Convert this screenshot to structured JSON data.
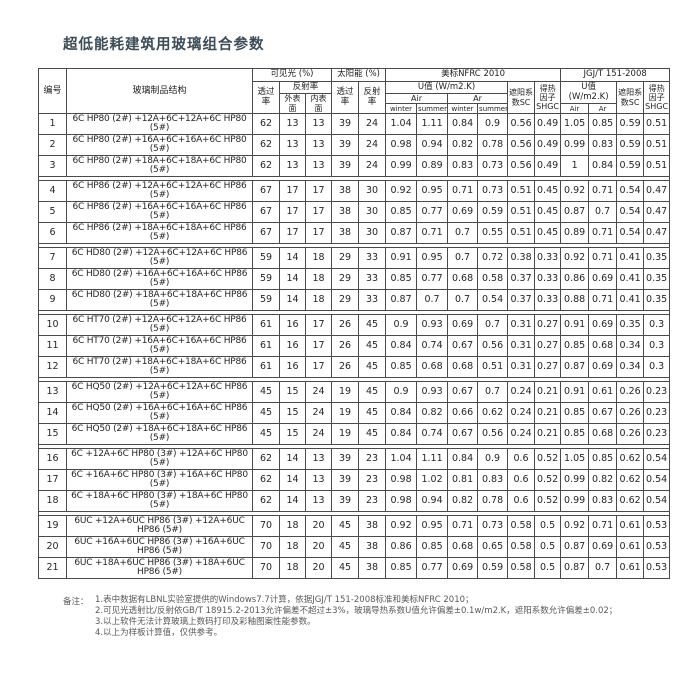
{
  "title": "超低能耗建筑用玻璃组合参数",
  "table": {
    "header": {
      "no": "编号",
      "structure": "玻璃制品结构",
      "visible": "可见光 (%)",
      "trans": "透过率",
      "refl": "反射率",
      "outer": "外表面",
      "inner": "内表面",
      "solar": "太阳能 (%)",
      "sol_trans": "透过率",
      "sol_refl": "反射率",
      "nfrc": "美标NFRC 2010",
      "uvalue": "U值 (W/m2.K)",
      "air": "Air",
      "ar": "Ar",
      "winter": "winter",
      "summer": "summer",
      "sc": "遮阳系数SC",
      "shgc": "得热因子SHGC",
      "jgj": "JGJ/T 151-2008",
      "uvalue2": "U值 (W/m2.K)",
      "air2": "Air",
      "ar2": "Ar",
      "sc2": "遮阳系数SC",
      "shgc2": "得热因子SHGC"
    },
    "rows": [
      [
        "1",
        "6C HP80 (2#) +12A+6C+12A+6C HP80 (5#)",
        "62",
        "13",
        "13",
        "39",
        "24",
        "1.04",
        "1.11",
        "0.84",
        "0.9",
        "0.56",
        "0.49",
        "1.05",
        "0.85",
        "0.59",
        "0.51"
      ],
      [
        "2",
        "6C HP80 (2#) +16A+6C+16A+6C HP80 (5#)",
        "62",
        "13",
        "13",
        "39",
        "24",
        "0.98",
        "0.94",
        "0.82",
        "0.78",
        "0.56",
        "0.49",
        "0.99",
        "0.83",
        "0.59",
        "0.51"
      ],
      [
        "3",
        "6C HP80 (2#) +18A+6C+18A+6C HP80 (5#)",
        "62",
        "13",
        "13",
        "39",
        "24",
        "0.99",
        "0.89",
        "0.83",
        "0.73",
        "0.56",
        "0.49",
        "1",
        "0.84",
        "0.59",
        "0.51"
      ],
      [
        "4",
        "6C HP86 (2#) +12A+6C+12A+6C HP86 (5#)",
        "67",
        "17",
        "17",
        "38",
        "30",
        "0.92",
        "0.95",
        "0.71",
        "0.73",
        "0.51",
        "0.45",
        "0.92",
        "0.71",
        "0.54",
        "0.47"
      ],
      [
        "5",
        "6C HP86 (2#) +16A+6C+16A+6C HP86 (5#)",
        "67",
        "17",
        "17",
        "38",
        "30",
        "0.85",
        "0.77",
        "0.69",
        "0.59",
        "0.51",
        "0.45",
        "0.87",
        "0.7",
        "0.54",
        "0.47"
      ],
      [
        "6",
        "6C HP86 (2#) +18A+6C+18A+6C HP86 (5#)",
        "67",
        "17",
        "17",
        "38",
        "30",
        "0.87",
        "0.71",
        "0.7",
        "0.55",
        "0.51",
        "0.45",
        "0.89",
        "0.71",
        "0.54",
        "0.47"
      ],
      [
        "7",
        "6C HD80 (2#) +12A+6C+12A+6C HP86 (5#)",
        "59",
        "14",
        "18",
        "29",
        "33",
        "0.91",
        "0.95",
        "0.7",
        "0.72",
        "0.38",
        "0.33",
        "0.92",
        "0.71",
        "0.41",
        "0.35"
      ],
      [
        "8",
        "6C HD80 (2#) +16A+6C+16A+6C HP86 (5#)",
        "59",
        "14",
        "18",
        "29",
        "33",
        "0.85",
        "0.77",
        "0.68",
        "0.58",
        "0.37",
        "0.33",
        "0.86",
        "0.69",
        "0.41",
        "0.35"
      ],
      [
        "9",
        "6C HD80 (2#) +18A+6C+18A+6C HP86 (5#)",
        "59",
        "14",
        "18",
        "29",
        "33",
        "0.87",
        "0.7",
        "0.7",
        "0.54",
        "0.37",
        "0.33",
        "0.88",
        "0.71",
        "0.41",
        "0.35"
      ],
      [
        "10",
        "6C HT70 (2#) +12A+6C+12A+6C HP86 (5#)",
        "61",
        "16",
        "17",
        "26",
        "45",
        "0.9",
        "0.93",
        "0.69",
        "0.7",
        "0.31",
        "0.27",
        "0.91",
        "0.69",
        "0.35",
        "0.3"
      ],
      [
        "11",
        "6C HT70 (2#) +16A+6C+16A+6C HP86 (5#)",
        "61",
        "16",
        "17",
        "26",
        "45",
        "0.84",
        "0.74",
        "0.67",
        "0.56",
        "0.31",
        "0.27",
        "0.85",
        "0.68",
        "0.34",
        "0.3"
      ],
      [
        "12",
        "6C HT70 (2#) +18A+6C+18A+6C HP86 (5#)",
        "61",
        "16",
        "17",
        "26",
        "45",
        "0.85",
        "0.68",
        "0.68",
        "0.51",
        "0.31",
        "0.27",
        "0.87",
        "0.69",
        "0.34",
        "0.3"
      ],
      [
        "13",
        "6C HQ50 (2#) +12A+6C+12A+6C HP86 (5#)",
        "45",
        "15",
        "24",
        "19",
        "45",
        "0.9",
        "0.93",
        "0.67",
        "0.7",
        "0.24",
        "0.21",
        "0.91",
        "0.61",
        "0.26",
        "0.23"
      ],
      [
        "14",
        "6C HQ50 (2#) +16A+6C+16A+6C HP86 (5#)",
        "45",
        "15",
        "24",
        "19",
        "45",
        "0.84",
        "0.82",
        "0.66",
        "0.62",
        "0.24",
        "0.21",
        "0.85",
        "0.67",
        "0.26",
        "0.23"
      ],
      [
        "15",
        "6C HQ50 (2#) +18A+6C+18A+6C HP86 (5#)",
        "45",
        "15",
        "24",
        "19",
        "45",
        "0.84",
        "0.74",
        "0.67",
        "0.56",
        "0.24",
        "0.21",
        "0.85",
        "0.68",
        "0.26",
        "0.23"
      ],
      [
        "16",
        "6C +12A+6C HP80 (3#) +12A+6C HP80 (5#)",
        "62",
        "14",
        "13",
        "39",
        "23",
        "1.04",
        "1.11",
        "0.84",
        "0.9",
        "0.6",
        "0.52",
        "1.05",
        "0.85",
        "0.62",
        "0.54"
      ],
      [
        "17",
        "6C +16A+6C HP80 (3#) +16A+6C HP80 (5#)",
        "62",
        "14",
        "13",
        "39",
        "23",
        "0.98",
        "1.02",
        "0.81",
        "0.83",
        "0.6",
        "0.52",
        "0.99",
        "0.82",
        "0.62",
        "0.54"
      ],
      [
        "18",
        "6C +18A+6C HP80 (3#) +18A+6C HP80 (5#)",
        "62",
        "14",
        "13",
        "39",
        "23",
        "0.98",
        "0.94",
        "0.82",
        "0.78",
        "0.6",
        "0.52",
        "0.99",
        "0.83",
        "0.62",
        "0.54"
      ],
      [
        "19",
        "6UC +12A+6UC HP86 (3#) +12A+6UC HP86 (5#)",
        "70",
        "18",
        "20",
        "45",
        "38",
        "0.92",
        "0.95",
        "0.71",
        "0.73",
        "0.58",
        "0.5",
        "0.92",
        "0.71",
        "0.61",
        "0.53"
      ],
      [
        "20",
        "6UC +16A+6UC HP86 (3#) +16A+6UC HP86 (5#)",
        "70",
        "18",
        "20",
        "45",
        "38",
        "0.86",
        "0.85",
        "0.68",
        "0.65",
        "0.58",
        "0.5",
        "0.87",
        "0.69",
        "0.61",
        "0.53"
      ],
      [
        "21",
        "6UC +18A+6UC HP86 (3#) +18A+6UC HP86 (5#)",
        "70",
        "18",
        "20",
        "45",
        "38",
        "0.85",
        "0.77",
        "0.69",
        "0.59",
        "0.58",
        "0.5",
        "0.87",
        "0.7",
        "0.61",
        "0.53"
      ]
    ],
    "group_size": 3
  },
  "notes": {
    "label": "备注：",
    "lines": [
      "1.表中数据有LBNL实验室提供的Windows7.7计算，依据JGJ/T 151-2008标准和美标NFRC 2010；",
      "2.可见光透射比/反射依GB/T 18915.2-2013允许偏差不超过±3%，玻璃导热系数U值允许偏差±0.1w/m2.K，遮阳系数允许偏差±0.02；",
      "3.以上软件无法计算玻璃上数码打印及彩釉图案性能参数。",
      "4.以上为样板计算值，仅供参考。"
    ]
  }
}
